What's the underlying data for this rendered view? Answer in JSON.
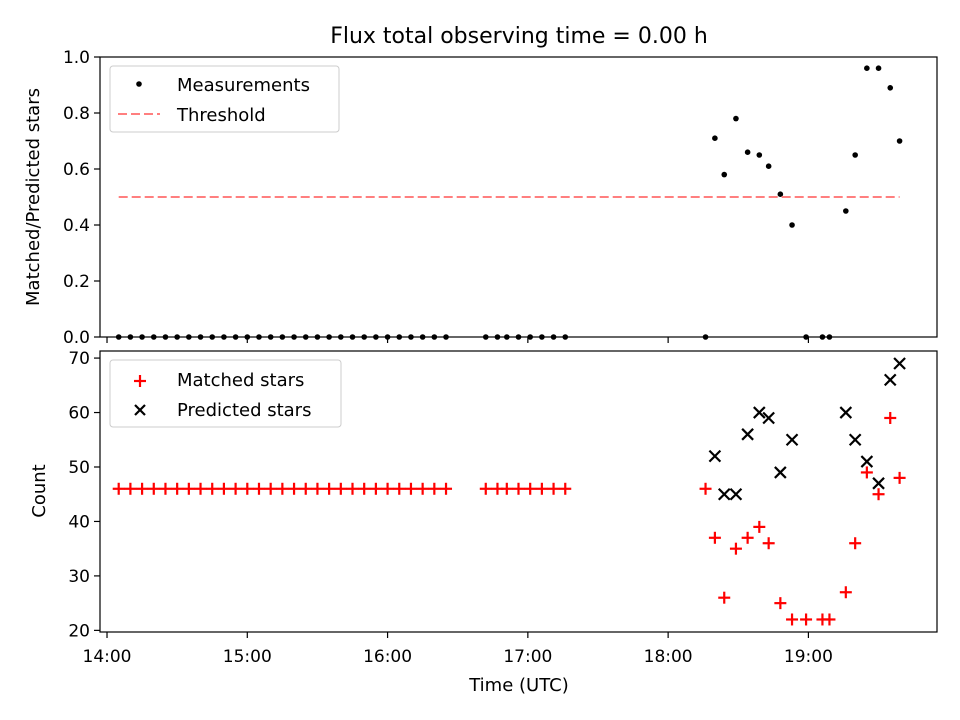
{
  "chart_data": [
    {
      "type": "scatter",
      "title": "Flux total observing time = 0.00 h",
      "xlabel": "",
      "ylabel": "Matched/Predicted stars",
      "xlim": [
        "13:57",
        "19:55"
      ],
      "ylim": [
        0,
        1.0
      ],
      "yticks": [
        "0.0",
        "0.2",
        "0.4",
        "0.6",
        "0.8",
        "1.0"
      ],
      "grid": false,
      "legend": "top-left",
      "series": [
        {
          "name": "Measurements",
          "marker": "dot",
          "color": "#000000",
          "x": [
            "14:05",
            "14:10",
            "14:15",
            "14:20",
            "14:25",
            "14:30",
            "14:35",
            "14:40",
            "14:45",
            "14:50",
            "14:55",
            "15:00",
            "15:05",
            "15:10",
            "15:15",
            "15:20",
            "15:25",
            "15:30",
            "15:35",
            "15:40",
            "15:45",
            "15:50",
            "15:55",
            "16:00",
            "16:05",
            "16:10",
            "16:15",
            "16:20",
            "16:25",
            "16:42",
            "16:47",
            "16:51",
            "16:56",
            "17:01",
            "17:06",
            "17:11",
            "17:16",
            "18:16",
            "18:20",
            "18:24",
            "18:29",
            "18:34",
            "18:39",
            "18:43",
            "18:48",
            "18:53",
            "18:59",
            "19:06",
            "19:09",
            "19:16",
            "19:20",
            "19:25",
            "19:30",
            "19:35",
            "19:39"
          ],
          "y": [
            0,
            0,
            0,
            0,
            0,
            0,
            0,
            0,
            0,
            0,
            0,
            0,
            0,
            0,
            0,
            0,
            0,
            0,
            0,
            0,
            0,
            0,
            0,
            0,
            0,
            0,
            0,
            0,
            0,
            0,
            0,
            0,
            0,
            0,
            0,
            0,
            0,
            0,
            0.71,
            0.58,
            0.78,
            0.66,
            0.65,
            0.61,
            0.51,
            0.4,
            0,
            0,
            0,
            0.45,
            0.65,
            0.96,
            0.96,
            0.89,
            0.7
          ]
        },
        {
          "name": "Threshold",
          "type": "line",
          "style": "dashed",
          "color": "#ff7f7f",
          "x": [
            "14:05",
            "19:39"
          ],
          "y": [
            0.5,
            0.5
          ]
        }
      ]
    },
    {
      "type": "scatter",
      "title": "",
      "xlabel": "Time (UTC)",
      "ylabel": "Count",
      "xlim": [
        "13:57",
        "19:55"
      ],
      "ylim": [
        19.7,
        71.3
      ],
      "yticks": [
        "20",
        "30",
        "40",
        "50",
        "60",
        "70"
      ],
      "xticks": [
        "14:00",
        "15:00",
        "16:00",
        "17:00",
        "18:00",
        "19:00"
      ],
      "grid": false,
      "legend": "top-left",
      "series": [
        {
          "name": "Matched stars",
          "marker": "plus",
          "color": "#ff0000",
          "x": [
            "14:05",
            "14:10",
            "14:15",
            "14:20",
            "14:25",
            "14:30",
            "14:35",
            "14:40",
            "14:45",
            "14:50",
            "14:55",
            "15:00",
            "15:05",
            "15:10",
            "15:15",
            "15:20",
            "15:25",
            "15:30",
            "15:35",
            "15:40",
            "15:45",
            "15:50",
            "15:55",
            "16:00",
            "16:05",
            "16:10",
            "16:15",
            "16:20",
            "16:25",
            "16:42",
            "16:47",
            "16:51",
            "16:56",
            "17:01",
            "17:06",
            "17:11",
            "17:16",
            "18:16",
            "18:20",
            "18:24",
            "18:29",
            "18:34",
            "18:39",
            "18:43",
            "18:48",
            "18:53",
            "18:59",
            "19:06",
            "19:09",
            "19:16",
            "19:20",
            "19:25",
            "19:30",
            "19:35",
            "19:39"
          ],
          "y": [
            46,
            46,
            46,
            46,
            46,
            46,
            46,
            46,
            46,
            46,
            46,
            46,
            46,
            46,
            46,
            46,
            46,
            46,
            46,
            46,
            46,
            46,
            46,
            46,
            46,
            46,
            46,
            46,
            46,
            46,
            46,
            46,
            46,
            46,
            46,
            46,
            46,
            46,
            37,
            26,
            35,
            37,
            39,
            36,
            25,
            22,
            22,
            22,
            22,
            27,
            36,
            49,
            45,
            59,
            48
          ]
        },
        {
          "name": "Predicted stars",
          "marker": "x",
          "color": "#000000",
          "x": [
            "18:20",
            "18:24",
            "18:29",
            "18:34",
            "18:39",
            "18:43",
            "18:48",
            "18:53",
            "19:16",
            "19:20",
            "19:25",
            "19:30",
            "19:35",
            "19:39"
          ],
          "y": [
            52,
            45,
            45,
            56,
            60,
            59,
            49,
            55,
            60,
            55,
            51,
            47,
            66,
            69
          ]
        }
      ]
    }
  ]
}
